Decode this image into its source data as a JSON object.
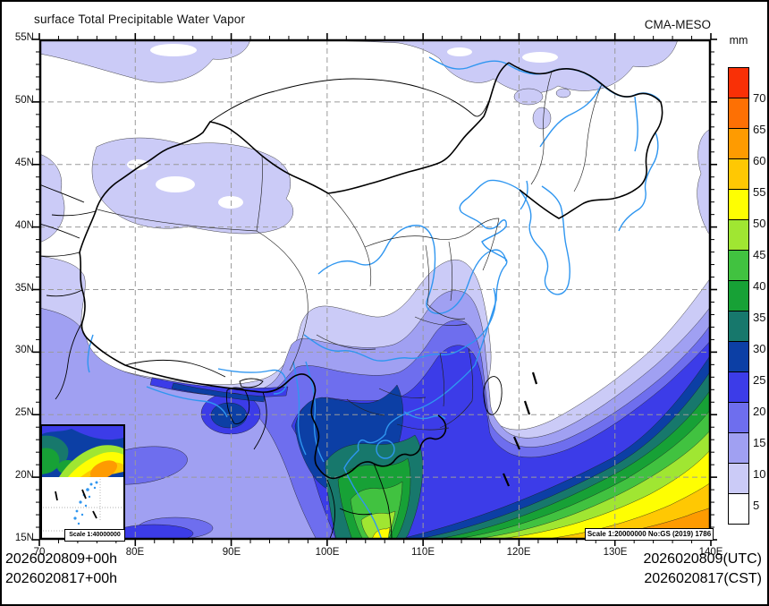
{
  "header": {
    "title": "surface Total Precipitable Water Vapor",
    "model": "CMA-MESO"
  },
  "colorbar": {
    "unit": "mm",
    "labels_top_to_bottom": [
      "70",
      "65",
      "60",
      "55",
      "50",
      "45",
      "40",
      "35",
      "30",
      "25",
      "20",
      "15",
      "10",
      "5"
    ],
    "colors_top_to_bottom": [
      "#f93006",
      "#fd7004",
      "#fe9b01",
      "#ffc803",
      "#fefe02",
      "#a0e632",
      "#41c240",
      "#17a136",
      "#17786c",
      "#0c3fa5",
      "#3c3ce8",
      "#6e6eee",
      "#a0a0f2",
      "#cbcbf7",
      "#ffffff"
    ]
  },
  "axes": {
    "lon_labels": [
      "70",
      "80E",
      "90E",
      "100E",
      "110E",
      "120E",
      "130E",
      "140E"
    ],
    "lat_labels": [
      "55N",
      "50N",
      "45N",
      "40N",
      "35N",
      "30N",
      "25N",
      "20N",
      "15N"
    ]
  },
  "footer": {
    "left_line1": "2026020809+00h",
    "left_line2": "2026020817+00h",
    "right_line1": "2026020809(UTC)",
    "right_line2": "2026020817(CST)"
  },
  "scale_boxes": {
    "main": "Scale 1:20000000 No:GS (2019) 1786",
    "inset": "Scale 1:40000000"
  },
  "chart_data": {
    "type": "heatmap",
    "variable": "surface Total Precipitable Water Vapor",
    "units": "mm",
    "model": "CMA-MESO",
    "init_label_utc": "2026020809+00h",
    "init_label_cst": "2026020817+00h",
    "valid_label_utc": "2026020809(UTC)",
    "valid_label_cst": "2026020817(CST)",
    "lon_range_deg_e": [
      70,
      140
    ],
    "lat_range_deg_n": [
      15,
      55
    ],
    "grid_interval_deg": {
      "lon": 10,
      "lat": 5
    },
    "contour_levels_mm": [
      5,
      10,
      15,
      20,
      25,
      30,
      35,
      40,
      45,
      50,
      55,
      60,
      65,
      70
    ],
    "palette_low_to_high": [
      "#ffffff",
      "#cbcbf7",
      "#a0a0f2",
      "#6e6eee",
      "#3c3ce8",
      "#0c3fa5",
      "#17786c",
      "#17a136",
      "#41c240",
      "#a0e632",
      "#fefe02",
      "#ffc803",
      "#fe9b01",
      "#fd7004",
      "#f93006"
    ],
    "legend_position": "right",
    "pattern_summary": "Dry air (<5 mm) over northern China, Mongolia, the Tibetan Plateau and Northeast China; 5-15 mm over the Tarim Basin, far-north band and India; values increase southeastward over southern China (15-30 mm); 30-45 mm over Indochina with a deep-blue band along the Himalayan foothills and Bay of Bengal coast; 45-70 mm in diagonal bands toward the tropical ocean in the southeast corner and over the South China Sea inset."
  }
}
